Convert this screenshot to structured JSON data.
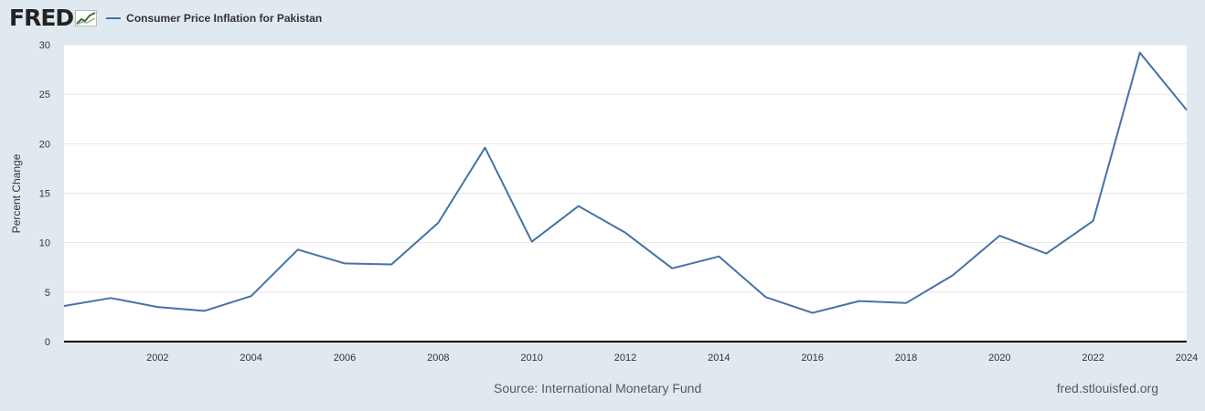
{
  "header": {
    "logo_text": "FRED",
    "legend_label": "Consumer Price Inflation for Pakistan"
  },
  "footer": {
    "source": "Source: International Monetary Fund",
    "site": "fred.stlouisfed.org"
  },
  "colors": {
    "background": "#e1e9f0",
    "plot_background": "#ffffff",
    "series": "#4572a7",
    "grid": "#e6e6e6",
    "axis": "#000000",
    "logo_accent": "#3b6e3a"
  },
  "chart_data": {
    "type": "line",
    "title": "Consumer Price Inflation for Pakistan",
    "xlabel": "",
    "ylabel": "Percent Change",
    "xlim": [
      2000,
      2024
    ],
    "ylim": [
      0,
      30
    ],
    "y_ticks": [
      "0",
      "5",
      "10",
      "15",
      "20",
      "25",
      "30"
    ],
    "x_ticks": [
      "2002",
      "2004",
      "2006",
      "2008",
      "2010",
      "2012",
      "2014",
      "2016",
      "2018",
      "2020",
      "2022",
      "2024"
    ],
    "grid": true,
    "legend": "top-left",
    "series": [
      {
        "name": "Consumer Price Inflation for Pakistan",
        "x": [
          2000,
          2001,
          2002,
          2003,
          2004,
          2005,
          2006,
          2007,
          2008,
          2009,
          2010,
          2011,
          2012,
          2013,
          2014,
          2015,
          2016,
          2017,
          2018,
          2019,
          2020,
          2021,
          2022,
          2023,
          2024
        ],
        "values": [
          3.6,
          4.4,
          3.5,
          3.1,
          4.6,
          9.3,
          7.9,
          7.8,
          12.0,
          19.6,
          10.1,
          13.7,
          11.0,
          7.4,
          8.6,
          4.5,
          2.9,
          4.1,
          3.9,
          6.7,
          10.7,
          8.9,
          12.2,
          29.2,
          23.4
        ]
      }
    ]
  }
}
